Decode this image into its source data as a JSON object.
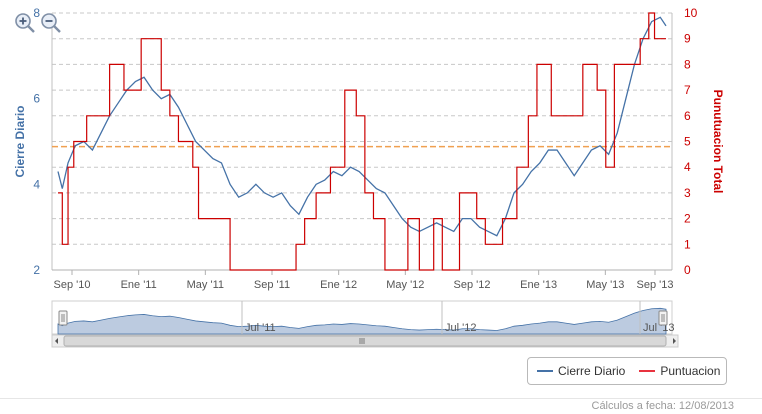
{
  "chart_data": {
    "type": "line",
    "y_left": {
      "label": "Cierre Diario",
      "range": [
        2,
        8
      ],
      "ticks": [
        "2",
        "4",
        "6",
        "8"
      ],
      "color": "#4572a7"
    },
    "y_right": {
      "label": "Punutuacion Total",
      "range": [
        0,
        10
      ],
      "ticks": [
        "0",
        "1",
        "2",
        "3",
        "4",
        "5",
        "6",
        "7",
        "8",
        "9",
        "10"
      ],
      "color": "#cc0000"
    },
    "x_ticks": [
      "Sep '10",
      "Ene '11",
      "May '11",
      "Sep '11",
      "Ene '12",
      "May '12",
      "Sep '12",
      "Ene '13",
      "May '13",
      "Sep '13"
    ],
    "grid": true,
    "reference_line": {
      "axis": "right",
      "value": 4.8,
      "color": "#f0a050"
    },
    "series": [
      {
        "name": "Cierre Diario",
        "axis": "left",
        "color": "#4572a7",
        "points": [
          [
            0.0,
            4.3
          ],
          [
            0.15,
            3.9
          ],
          [
            0.35,
            4.5
          ],
          [
            0.6,
            4.9
          ],
          [
            0.9,
            5.0
          ],
          [
            1.2,
            4.8
          ],
          [
            1.5,
            5.2
          ],
          [
            1.8,
            5.6
          ],
          [
            2.1,
            5.9
          ],
          [
            2.4,
            6.2
          ],
          [
            2.7,
            6.4
          ],
          [
            3.0,
            6.5
          ],
          [
            3.3,
            6.2
          ],
          [
            3.6,
            6.0
          ],
          [
            3.9,
            6.1
          ],
          [
            4.2,
            5.8
          ],
          [
            4.5,
            5.4
          ],
          [
            4.8,
            5.0
          ],
          [
            5.1,
            4.8
          ],
          [
            5.4,
            4.6
          ],
          [
            5.7,
            4.5
          ],
          [
            6.0,
            4.0
          ],
          [
            6.3,
            3.7
          ],
          [
            6.6,
            3.8
          ],
          [
            6.9,
            4.0
          ],
          [
            7.2,
            3.8
          ],
          [
            7.5,
            3.7
          ],
          [
            7.8,
            3.8
          ],
          [
            8.1,
            3.5
          ],
          [
            8.4,
            3.3
          ],
          [
            8.7,
            3.7
          ],
          [
            9.0,
            4.0
          ],
          [
            9.3,
            4.1
          ],
          [
            9.6,
            4.3
          ],
          [
            9.9,
            4.2
          ],
          [
            10.2,
            4.4
          ],
          [
            10.5,
            4.3
          ],
          [
            10.8,
            4.1
          ],
          [
            11.1,
            3.9
          ],
          [
            11.4,
            3.8
          ],
          [
            11.7,
            3.5
          ],
          [
            12.0,
            3.2
          ],
          [
            12.3,
            3.0
          ],
          [
            12.6,
            2.9
          ],
          [
            12.9,
            3.0
          ],
          [
            13.2,
            3.1
          ],
          [
            13.5,
            3.0
          ],
          [
            13.8,
            2.9
          ],
          [
            14.1,
            3.2
          ],
          [
            14.4,
            3.2
          ],
          [
            14.7,
            3.0
          ],
          [
            15.0,
            2.9
          ],
          [
            15.3,
            2.8
          ],
          [
            15.6,
            3.2
          ],
          [
            15.9,
            3.8
          ],
          [
            16.2,
            4.0
          ],
          [
            16.5,
            4.3
          ],
          [
            16.8,
            4.5
          ],
          [
            17.1,
            4.8
          ],
          [
            17.4,
            4.8
          ],
          [
            17.7,
            4.5
          ],
          [
            18.0,
            4.2
          ],
          [
            18.3,
            4.5
          ],
          [
            18.6,
            4.8
          ],
          [
            18.9,
            4.9
          ],
          [
            19.2,
            4.7
          ],
          [
            19.5,
            5.2
          ],
          [
            19.8,
            6.0
          ],
          [
            20.1,
            6.8
          ],
          [
            20.4,
            7.4
          ],
          [
            20.7,
            7.8
          ],
          [
            21.0,
            7.9
          ],
          [
            21.2,
            7.7
          ]
        ]
      },
      {
        "name": "Puntuacion",
        "axis": "right",
        "color": "#cc0000",
        "step": true,
        "points": [
          [
            0.0,
            3
          ],
          [
            0.15,
            1
          ],
          [
            0.35,
            4
          ],
          [
            0.55,
            5
          ],
          [
            1.0,
            6
          ],
          [
            1.8,
            8
          ],
          [
            2.3,
            7
          ],
          [
            2.9,
            9
          ],
          [
            3.6,
            7
          ],
          [
            3.9,
            6
          ],
          [
            4.2,
            5
          ],
          [
            4.7,
            4
          ],
          [
            4.9,
            2
          ],
          [
            6.0,
            0
          ],
          [
            8.3,
            1
          ],
          [
            8.6,
            2
          ],
          [
            9.0,
            3
          ],
          [
            9.5,
            4
          ],
          [
            10.0,
            7
          ],
          [
            10.4,
            6
          ],
          [
            10.7,
            3
          ],
          [
            11.0,
            2
          ],
          [
            11.4,
            0
          ],
          [
            12.2,
            2
          ],
          [
            12.6,
            0
          ],
          [
            13.1,
            2
          ],
          [
            13.4,
            0
          ],
          [
            14.0,
            3
          ],
          [
            14.6,
            2
          ],
          [
            14.9,
            1
          ],
          [
            15.5,
            2
          ],
          [
            16.0,
            4
          ],
          [
            16.4,
            6
          ],
          [
            16.7,
            8
          ],
          [
            17.2,
            6
          ],
          [
            17.7,
            6
          ],
          [
            18.3,
            8
          ],
          [
            18.8,
            7
          ],
          [
            19.1,
            4
          ],
          [
            19.4,
            8
          ],
          [
            20.3,
            9
          ],
          [
            20.6,
            10
          ],
          [
            20.8,
            9
          ]
        ]
      }
    ],
    "navigator": {
      "labels": [
        "Jul '11",
        "Jul '12",
        "Jul '13"
      ],
      "color": "#a6b9d5"
    },
    "title": "",
    "subtitle": ""
  },
  "legend": {
    "items": [
      {
        "label": "Cierre Diario",
        "color": "#4572a7"
      },
      {
        "label": "Puntuacion",
        "color": "#e8333f"
      }
    ]
  },
  "footer": {
    "text": "Cálculos a fecha: 12/08/2013"
  },
  "controls": {
    "zoom_in": "zoom-in",
    "zoom_out": "zoom-out"
  }
}
